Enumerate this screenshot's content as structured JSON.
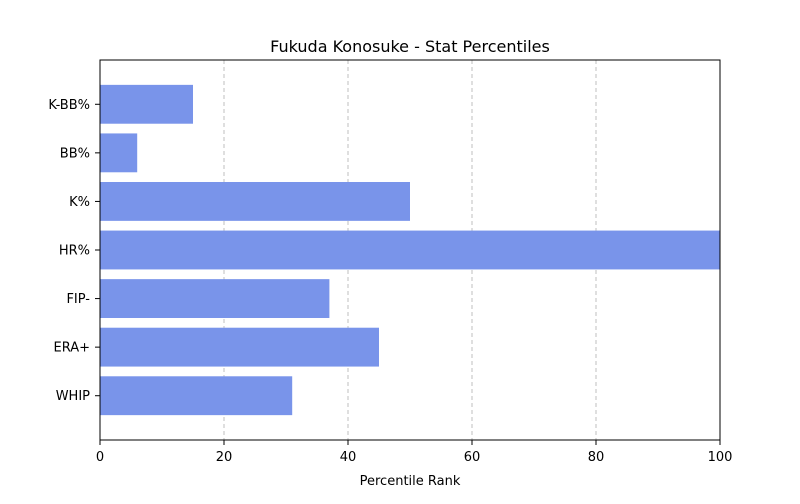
{
  "chart_data": {
    "type": "bar",
    "orientation": "horizontal",
    "title": "Fukuda Konosuke - Stat Percentiles",
    "xlabel": "Percentile Rank",
    "ylabel": "",
    "xlim": [
      0,
      100
    ],
    "xticks": [
      0,
      20,
      40,
      60,
      80,
      100
    ],
    "grid": "x-axis, dashed",
    "categories": [
      "WHIP",
      "ERA+",
      "FIP-",
      "HR%",
      "K%",
      "BB%",
      "K-BB%"
    ],
    "values": [
      31,
      45,
      37,
      100,
      50,
      6,
      15
    ],
    "bar_color": "#7994ea"
  }
}
